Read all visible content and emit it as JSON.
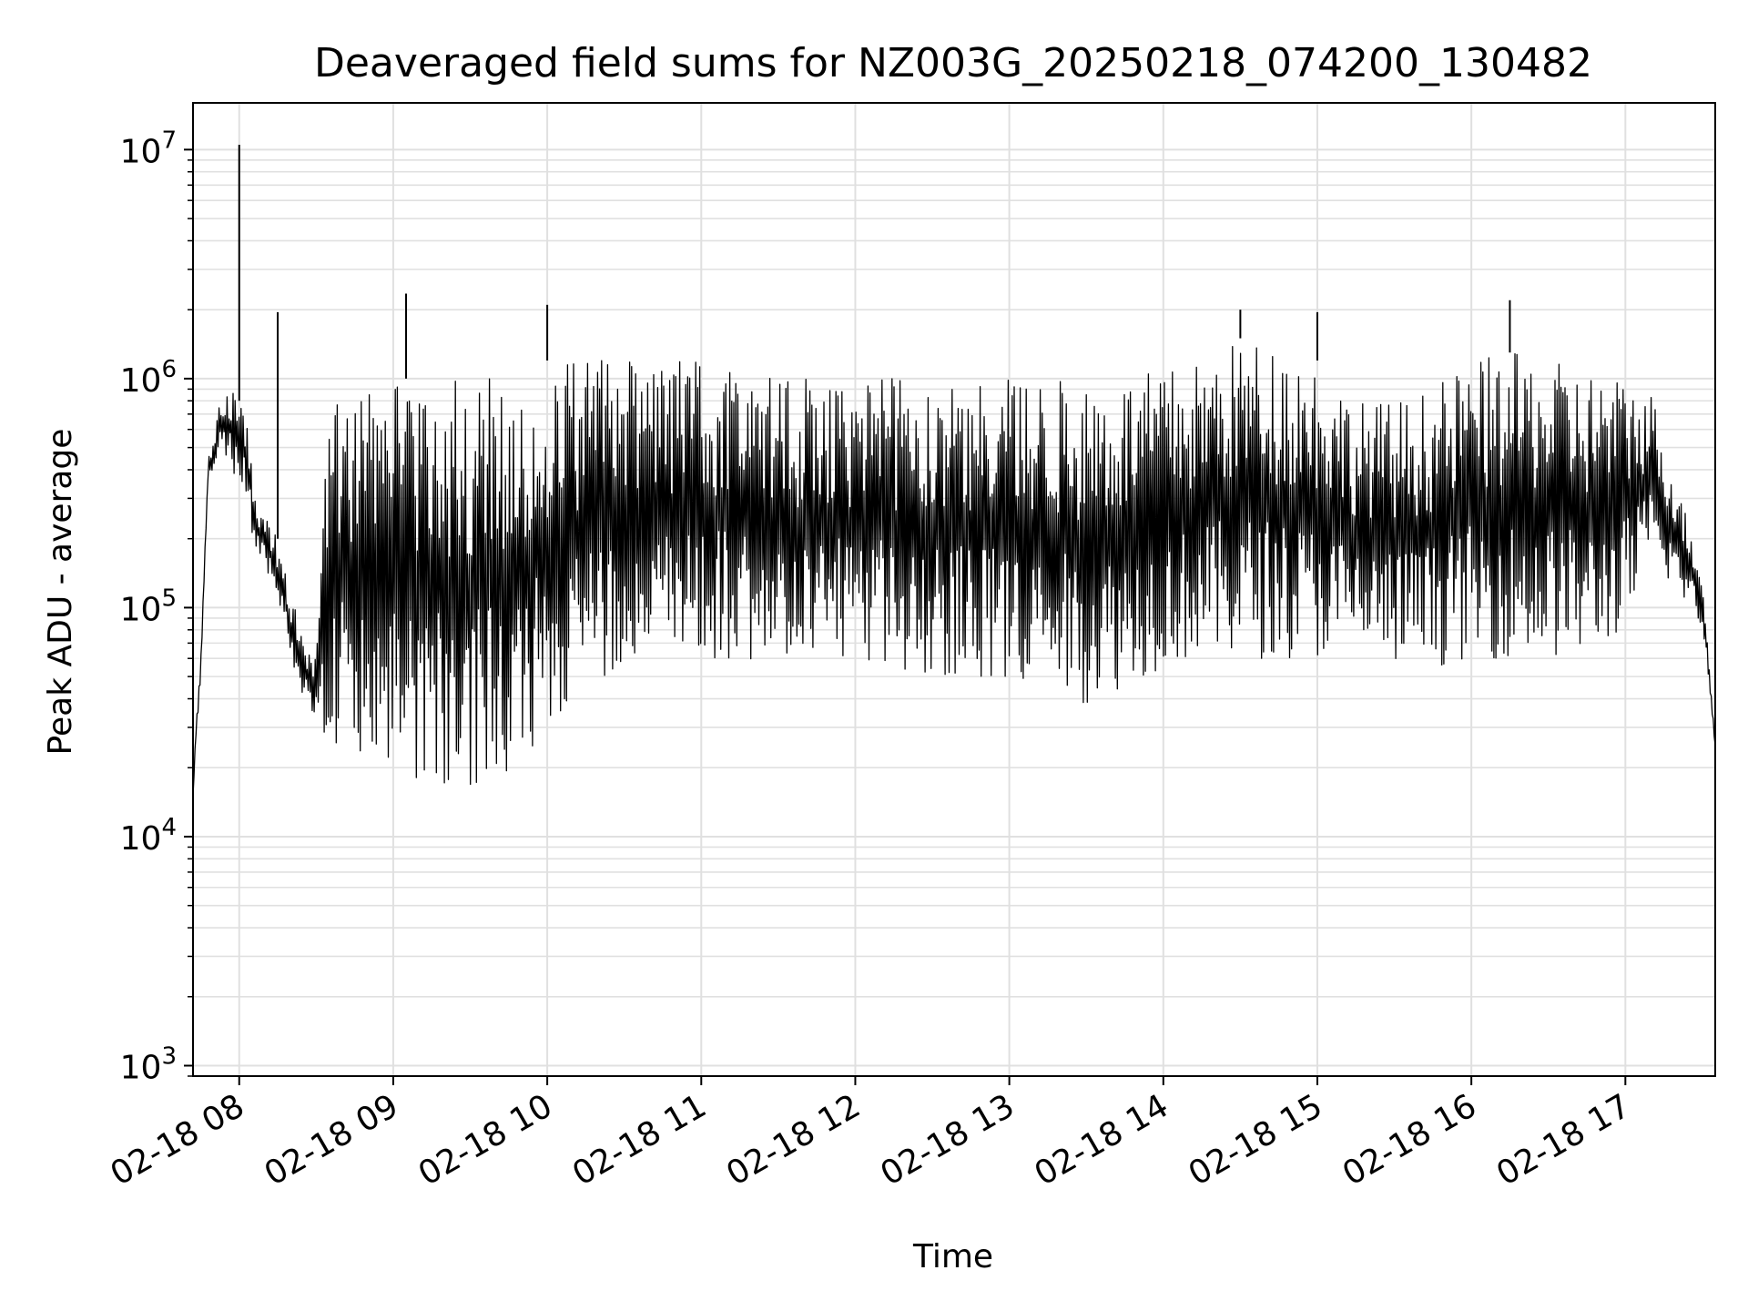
{
  "chart_data": {
    "type": "line",
    "title": "Deaveraged field sums for NZ003G_20250218_074200_130482",
    "xlabel": "Time",
    "ylabel": "Peak ADU - average",
    "yscale": "log",
    "ylim": [
      900,
      16000000
    ],
    "xlim": [
      "2025-02-18 07:42",
      "2025-02-18 17:35"
    ],
    "grid": true,
    "legend": "none",
    "colors": {
      "line": "#000000",
      "grid": "#e0e0e0",
      "axes": "#000000"
    },
    "x_ticks": [
      {
        "time": "2025-02-18 08:00",
        "label": "02-18 08"
      },
      {
        "time": "2025-02-18 09:00",
        "label": "02-18 09"
      },
      {
        "time": "2025-02-18 10:00",
        "label": "02-18 10"
      },
      {
        "time": "2025-02-18 11:00",
        "label": "02-18 11"
      },
      {
        "time": "2025-02-18 12:00",
        "label": "02-18 12"
      },
      {
        "time": "2025-02-18 13:00",
        "label": "02-18 13"
      },
      {
        "time": "2025-02-18 14:00",
        "label": "02-18 14"
      },
      {
        "time": "2025-02-18 15:00",
        "label": "02-18 15"
      },
      {
        "time": "2025-02-18 16:00",
        "label": "02-18 16"
      },
      {
        "time": "2025-02-18 17:00",
        "label": "02-18 17"
      }
    ],
    "y_ticks": [
      {
        "value": 1000,
        "base": "10",
        "exp": "3"
      },
      {
        "value": 10000,
        "base": "10",
        "exp": "4"
      },
      {
        "value": 100000,
        "base": "10",
        "exp": "5"
      },
      {
        "value": 1000000,
        "base": "10",
        "exp": "6"
      },
      {
        "value": 10000000,
        "base": "10",
        "exp": "7"
      }
    ],
    "series": [
      {
        "x": [
          "2025-02-18 07:42",
          "2025-02-18 07:43",
          "2025-02-18 07:45",
          "2025-02-18 07:48",
          "2025-02-18 07:50",
          "2025-02-18 07:52",
          "2025-02-18 07:55",
          "2025-02-18 07:57",
          "2025-02-18 08:00",
          "2025-02-18 08:03",
          "2025-02-18 08:06",
          "2025-02-18 08:10",
          "2025-02-18 08:15",
          "2025-02-18 08:20",
          "2025-02-18 08:25",
          "2025-02-18 08:30",
          "2025-02-18 08:35",
          "2025-02-18 08:40",
          "2025-02-18 08:45",
          "2025-02-18 08:50",
          "2025-02-18 08:55",
          "2025-02-18 09:00",
          "2025-02-18 09:10",
          "2025-02-18 09:20",
          "2025-02-18 09:30",
          "2025-02-18 09:40",
          "2025-02-18 09:50",
          "2025-02-18 10:00",
          "2025-02-18 10:15",
          "2025-02-18 10:30",
          "2025-02-18 10:45",
          "2025-02-18 11:00",
          "2025-02-18 11:15",
          "2025-02-18 11:30",
          "2025-02-18 11:45",
          "2025-02-18 12:00",
          "2025-02-18 12:15",
          "2025-02-18 12:30",
          "2025-02-18 12:45",
          "2025-02-18 13:00",
          "2025-02-18 13:15",
          "2025-02-18 13:30",
          "2025-02-18 13:45",
          "2025-02-18 14:00",
          "2025-02-18 14:15",
          "2025-02-18 14:30",
          "2025-02-18 14:45",
          "2025-02-18 15:00",
          "2025-02-18 15:15",
          "2025-02-18 15:30",
          "2025-02-18 15:45",
          "2025-02-18 16:00",
          "2025-02-18 16:15",
          "2025-02-18 16:30",
          "2025-02-18 16:45",
          "2025-02-18 17:00",
          "2025-02-18 17:10",
          "2025-02-18 17:20",
          "2025-02-18 17:30",
          "2025-02-18 17:35"
        ],
        "high": [
          15000,
          28000,
          60000,
          450000,
          600000,
          800000,
          850000,
          900000,
          800000,
          700000,
          300000,
          250000,
          200000,
          120000,
          70000,
          60000,
          1000000,
          1000000,
          1000000,
          1000000,
          1000000,
          1000000,
          1000000,
          1000000,
          1000000,
          1100000,
          1100000,
          1200000,
          1200000,
          1200000,
          1200000,
          1200000,
          1100000,
          1000000,
          1000000,
          1000000,
          1000000,
          1000000,
          1000000,
          1000000,
          1000000,
          1000000,
          1000000,
          1100000,
          1200000,
          1500000,
          1400000,
          1200000,
          800000,
          800000,
          900000,
          1200000,
          1300000,
          1200000,
          1100000,
          1000000,
          900000,
          350000,
          150000,
          25000
        ],
        "low": [
          15000,
          25000,
          50000,
          400000,
          350000,
          500000,
          450000,
          400000,
          350000,
          300000,
          180000,
          150000,
          100000,
          60000,
          40000,
          30000,
          25000,
          22000,
          22000,
          20000,
          20000,
          20000,
          16000,
          15000,
          15000,
          15000,
          20000,
          30000,
          40000,
          60000,
          60000,
          60000,
          60000,
          55000,
          55000,
          55000,
          52000,
          50000,
          50000,
          50000,
          45000,
          38000,
          45000,
          55000,
          60000,
          60000,
          60000,
          60000,
          60000,
          55000,
          55000,
          60000,
          60000,
          60000,
          60000,
          80000,
          150000,
          120000,
          80000,
          25000
        ],
        "spikes": [
          {
            "time": "2025-02-18 08:00",
            "value": 10500000
          },
          {
            "time": "2025-02-18 09:05",
            "value": 2350000
          },
          {
            "time": "2025-02-18 10:00",
            "value": 2100000
          },
          {
            "time": "2025-02-18 08:15",
            "value": 1950000
          },
          {
            "time": "2025-02-18 14:30",
            "value": 2000000
          },
          {
            "time": "2025-02-18 16:15",
            "value": 2200000
          },
          {
            "time": "2025-02-18 15:00",
            "value": 1950000
          }
        ]
      }
    ]
  }
}
